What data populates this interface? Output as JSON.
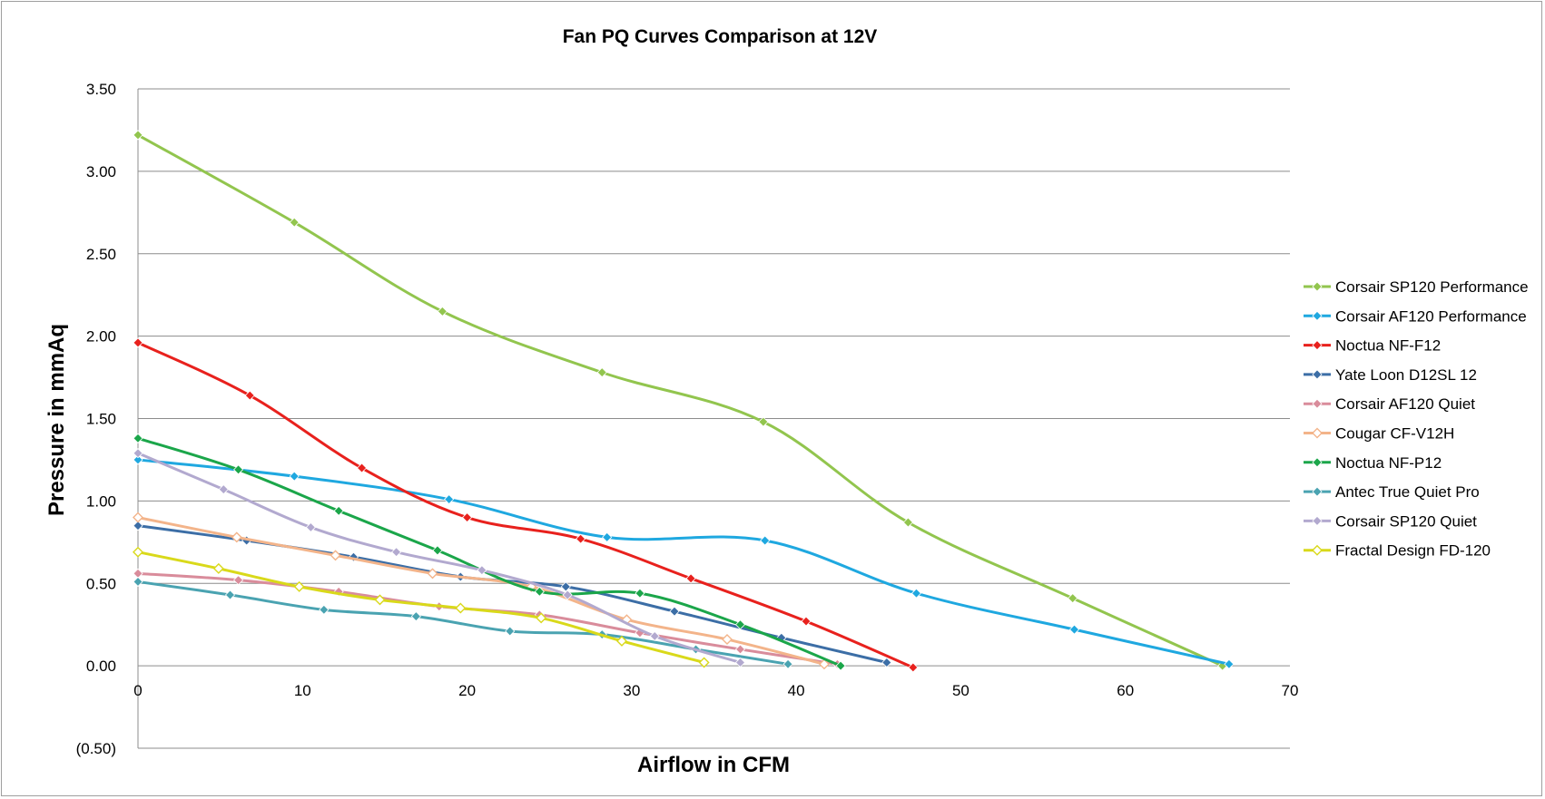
{
  "chart_data": {
    "type": "line",
    "title": "Fan PQ Curves Comparison at 12V",
    "xlabel": "Airflow in CFM",
    "ylabel": "Pressure in mmAq",
    "xlim": [
      0,
      70
    ],
    "ylim": [
      -0.5,
      3.5
    ],
    "x_ticks": [
      "0",
      "10",
      "20",
      "30",
      "40",
      "50",
      "60",
      "70"
    ],
    "x_tick_values": [
      0,
      10,
      20,
      30,
      40,
      50,
      60,
      70
    ],
    "y_ticks": [
      "3.50",
      "3.00",
      "2.50",
      "2.00",
      "1.50",
      "1.00",
      "0.50",
      "0.00",
      "(0.50)"
    ],
    "y_tick_values": [
      3.5,
      3.0,
      2.5,
      2.0,
      1.5,
      1.0,
      0.5,
      0.0,
      -0.5
    ],
    "negative_tick_color": "#ff0000",
    "grid": "horizontal",
    "legend_position": "right",
    "series": [
      {
        "name": "Corsair SP120 Performance",
        "color": "#92c54e",
        "marker": "diamond-filled",
        "points": [
          [
            0,
            3.22
          ],
          [
            9.5,
            2.69
          ],
          [
            18.5,
            2.15
          ],
          [
            28.2,
            1.78
          ],
          [
            38,
            1.48
          ],
          [
            46.8,
            0.87
          ],
          [
            56.8,
            0.41
          ],
          [
            65.9,
            0.0
          ]
        ]
      },
      {
        "name": "Corsair AF120 Performance",
        "color": "#1fa8e0",
        "marker": "diamond-filled",
        "points": [
          [
            0,
            1.25
          ],
          [
            9.5,
            1.15
          ],
          [
            18.9,
            1.01
          ],
          [
            28.5,
            0.78
          ],
          [
            38.1,
            0.76
          ],
          [
            47.3,
            0.44
          ],
          [
            56.9,
            0.22
          ],
          [
            66.3,
            0.01
          ]
        ]
      },
      {
        "name": "Noctua NF-F12",
        "color": "#e8211d",
        "marker": "diamond-filled",
        "points": [
          [
            0,
            1.96
          ],
          [
            6.8,
            1.64
          ],
          [
            13.6,
            1.2
          ],
          [
            20,
            0.9
          ],
          [
            26.9,
            0.77
          ],
          [
            33.6,
            0.53
          ],
          [
            40.6,
            0.27
          ],
          [
            47.1,
            -0.01
          ]
        ]
      },
      {
        "name": "Yate Loon D12SL 12",
        "color": "#3c6ea6",
        "marker": "diamond-filled",
        "points": [
          [
            0,
            0.85
          ],
          [
            6.6,
            0.76
          ],
          [
            13.1,
            0.66
          ],
          [
            19.6,
            0.54
          ],
          [
            26,
            0.48
          ],
          [
            32.6,
            0.33
          ],
          [
            39.1,
            0.17
          ],
          [
            45.5,
            0.02
          ]
        ]
      },
      {
        "name": "Corsair AF120 Quiet",
        "color": "#d98c9b",
        "marker": "diamond-filled",
        "points": [
          [
            0,
            0.56
          ],
          [
            6.1,
            0.52
          ],
          [
            12.2,
            0.45
          ],
          [
            18.3,
            0.36
          ],
          [
            24.4,
            0.31
          ],
          [
            30.5,
            0.2
          ],
          [
            36.6,
            0.1
          ],
          [
            42.5,
            0.01
          ]
        ]
      },
      {
        "name": "Cougar CF-V12H",
        "color": "#f3b48a",
        "marker": "diamond-hollow",
        "points": [
          [
            0,
            0.9
          ],
          [
            6,
            0.78
          ],
          [
            12,
            0.67
          ],
          [
            17.9,
            0.56
          ],
          [
            23.9,
            0.48
          ],
          [
            29.7,
            0.28
          ],
          [
            35.8,
            0.16
          ],
          [
            41.7,
            0.01
          ]
        ]
      },
      {
        "name": "Noctua NF-P12",
        "color": "#1ba64a",
        "marker": "diamond-filled",
        "points": [
          [
            0,
            1.38
          ],
          [
            6.1,
            1.19
          ],
          [
            12.2,
            0.94
          ],
          [
            18.2,
            0.7
          ],
          [
            24.4,
            0.45
          ],
          [
            30.5,
            0.44
          ],
          [
            36.6,
            0.25
          ],
          [
            42.7,
            0.0
          ]
        ]
      },
      {
        "name": "Antec True Quiet Pro",
        "color": "#4aa3b1",
        "marker": "diamond-filled",
        "points": [
          [
            0,
            0.51
          ],
          [
            5.6,
            0.43
          ],
          [
            11.3,
            0.34
          ],
          [
            16.9,
            0.3
          ],
          [
            22.6,
            0.21
          ],
          [
            28.2,
            0.19
          ],
          [
            33.9,
            0.1
          ],
          [
            39.5,
            0.01
          ]
        ]
      },
      {
        "name": "Corsair SP120 Quiet",
        "color": "#b2a9cf",
        "marker": "diamond-filled",
        "points": [
          [
            0,
            1.29
          ],
          [
            5.2,
            1.07
          ],
          [
            10.5,
            0.84
          ],
          [
            15.7,
            0.69
          ],
          [
            20.9,
            0.58
          ],
          [
            26.1,
            0.43
          ],
          [
            31.4,
            0.18
          ],
          [
            36.6,
            0.02
          ]
        ]
      },
      {
        "name": "Fractal Design FD-120",
        "color": "#d9d91a",
        "marker": "diamond-hollow",
        "points": [
          [
            0,
            0.69
          ],
          [
            4.9,
            0.59
          ],
          [
            9.8,
            0.48
          ],
          [
            14.7,
            0.4
          ],
          [
            19.6,
            0.35
          ],
          [
            24.5,
            0.29
          ],
          [
            29.4,
            0.15
          ],
          [
            34.4,
            0.02
          ]
        ]
      }
    ]
  }
}
